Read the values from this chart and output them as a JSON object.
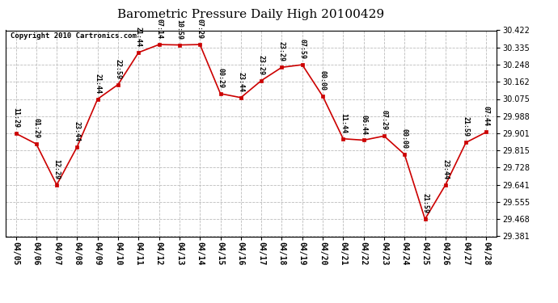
{
  "title": "Barometric Pressure Daily High 20100429",
  "copyright": "Copyright 2010 Cartronics.com",
  "x_labels": [
    "04/05",
    "04/06",
    "04/07",
    "04/08",
    "04/09",
    "04/10",
    "04/11",
    "04/12",
    "04/13",
    "04/14",
    "04/15",
    "04/16",
    "04/17",
    "04/18",
    "04/19",
    "04/20",
    "04/21",
    "04/22",
    "04/23",
    "04/24",
    "04/25",
    "04/26",
    "04/27",
    "04/28"
  ],
  "y_values": [
    29.901,
    29.848,
    29.641,
    29.834,
    30.075,
    30.148,
    30.31,
    30.35,
    30.348,
    30.35,
    30.102,
    30.082,
    30.168,
    30.235,
    30.248,
    30.089,
    29.874,
    29.867,
    29.888,
    29.795,
    29.468,
    29.641,
    29.855,
    29.908
  ],
  "annotations": [
    "11:29",
    "01:29",
    "12:29",
    "23:44",
    "21:44",
    "22:59",
    "21:44",
    "07:14",
    "10:59",
    "07:29",
    "00:29",
    "23:44",
    "23:29",
    "23:29",
    "07:59",
    "00:00",
    "11:44",
    "06:44",
    "07:29",
    "00:00",
    "21:59",
    "23:44",
    "21:59",
    "07:44"
  ],
  "y_ticks": [
    29.381,
    29.468,
    29.555,
    29.641,
    29.728,
    29.815,
    29.901,
    29.988,
    30.075,
    30.162,
    30.248,
    30.335,
    30.422
  ],
  "ylim_min": 29.381,
  "ylim_max": 30.422,
  "line_color": "#cc0000",
  "marker_color": "#cc0000",
  "bg_color": "#ffffff",
  "plot_bg_color": "#ffffff",
  "grid_color": "#bbbbbb",
  "title_fontsize": 11,
  "annotation_fontsize": 6,
  "tick_fontsize": 7,
  "copyright_fontsize": 6.5
}
